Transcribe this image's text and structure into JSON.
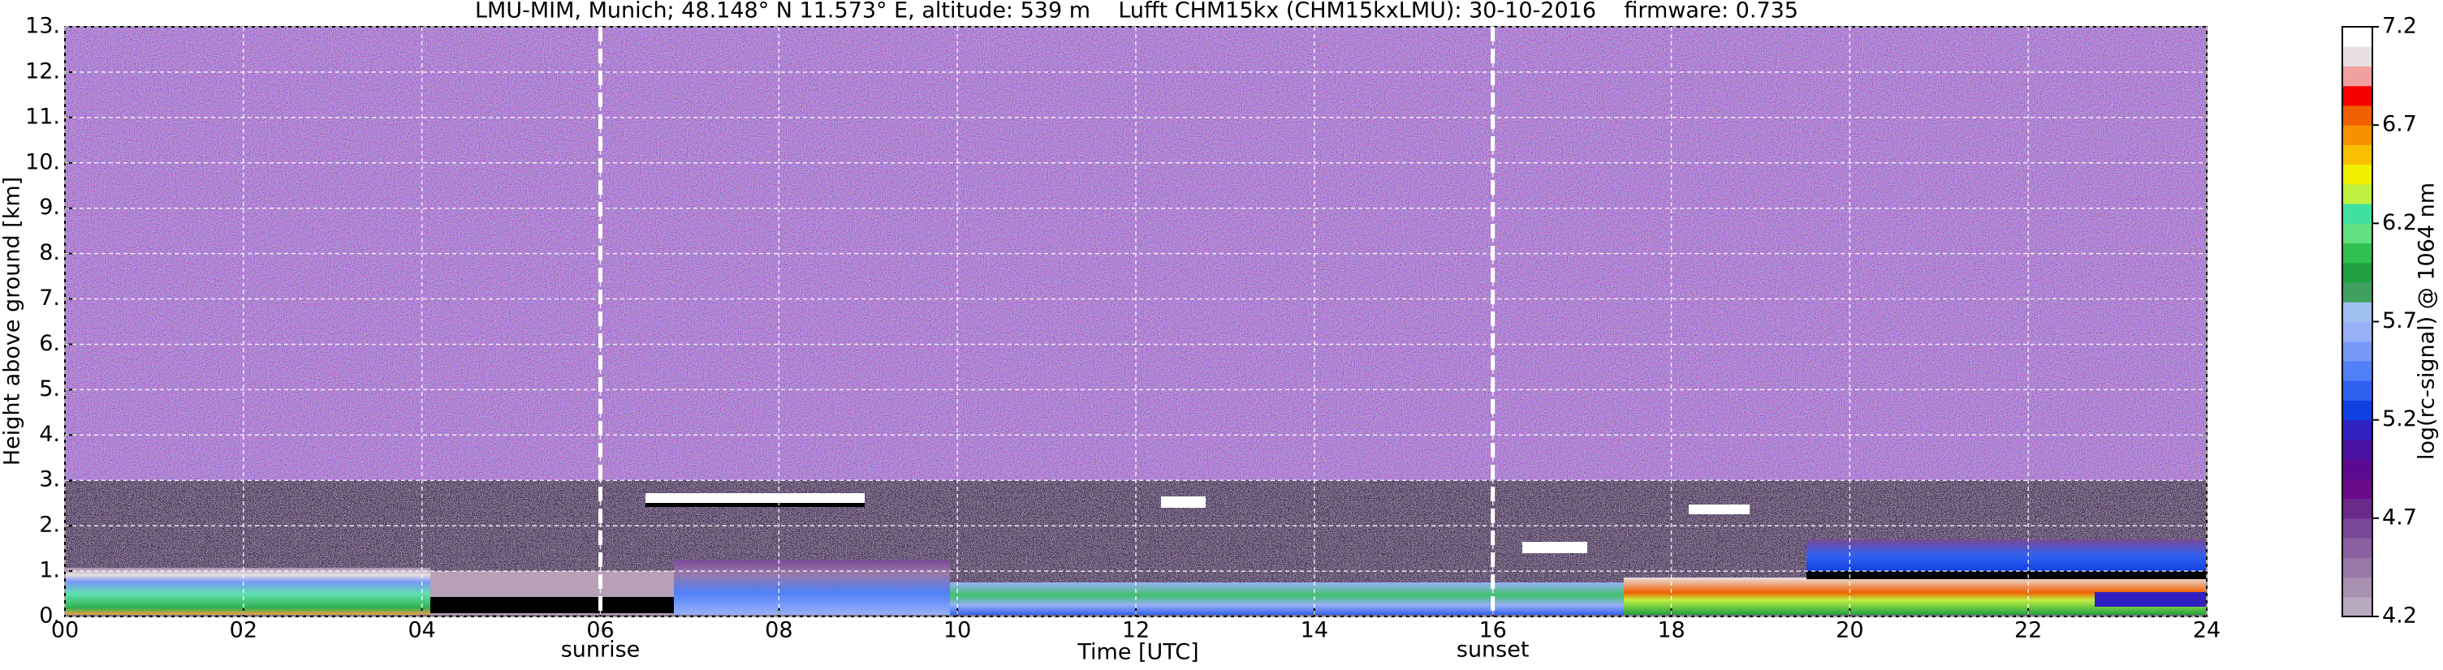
{
  "chart_data": {
    "type": "heatmap",
    "title": "LMU-MIM, Munich; 48.148° N 11.573° E, altitude: 539 m    Lufft CHM15kx (CHM15kxLMU): 30-10-2016    firmware: 0.735",
    "xlabel": "Time [UTC]",
    "ylabel": "Height above ground [km]",
    "colorbar_label": "log(rc-signal) @ 1064 nm",
    "xlim": [
      0,
      24
    ],
    "xticks": [
      {
        "value": 0,
        "label": "00"
      },
      {
        "value": 2,
        "label": "02"
      },
      {
        "value": 4,
        "label": "04"
      },
      {
        "value": 6,
        "label": "06"
      },
      {
        "value": 8,
        "label": "08"
      },
      10,
      12,
      14,
      16,
      18,
      20,
      22,
      24
    ],
    "ylim": [
      0,
      13
    ],
    "yticks": [
      {
        "value": 0,
        "label": "0."
      },
      {
        "value": 1,
        "label": "1."
      },
      {
        "value": 2,
        "label": "2."
      },
      {
        "value": 3,
        "label": "3."
      },
      {
        "value": 4,
        "label": "4."
      },
      {
        "value": 5,
        "label": "5."
      },
      {
        "value": 6,
        "label": "6."
      },
      {
        "value": 7,
        "label": "7."
      },
      {
        "value": 8,
        "label": "8."
      },
      {
        "value": 9,
        "label": "9."
      },
      {
        "value": 10,
        "label": "10."
      },
      {
        "value": 11,
        "label": "11."
      },
      {
        "value": 12,
        "label": "12."
      },
      {
        "value": 13,
        "label": "13."
      }
    ],
    "clim": [
      4.2,
      7.2
    ],
    "cticks": [
      4.2,
      4.7,
      5.2,
      5.7,
      6.2,
      6.7,
      7.2
    ],
    "colormap": [
      "#b8a8c0",
      "#a890b0",
      "#9878a8",
      "#8a60a0",
      "#7a4896",
      "#6a2a8a",
      "#6a0a8a",
      "#5a0a90",
      "#4a10a0",
      "#3020c0",
      "#1040e0",
      "#3060f0",
      "#5080f8",
      "#7898f8",
      "#98b0f8",
      "#a0c0f0",
      "#40a060",
      "#20a040",
      "#30c050",
      "#60e080",
      "#40e0a0",
      "#c0f040",
      "#f0f000",
      "#f8c000",
      "#f89000",
      "#f06000",
      "#f80000",
      "#f0a0a0",
      "#e8e0e0",
      "#ffffff"
    ],
    "grid": true,
    "annotations": [
      {
        "text": "sunrise",
        "x": 6
      },
      {
        "text": "sunset",
        "x": 16
      }
    ]
  }
}
